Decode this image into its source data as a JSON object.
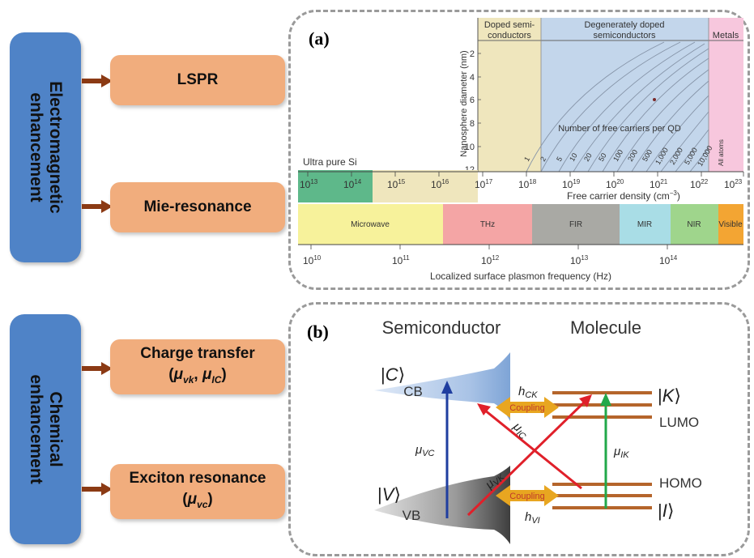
{
  "categories": [
    {
      "label_line1": "Electromagnetic",
      "label_line2": "enhancement"
    },
    {
      "label_line1": "Chemical",
      "label_line2": "enhancement"
    }
  ],
  "mechanisms": {
    "lspr": "LSPR",
    "mie": "Mie-resonance",
    "charge_transfer": "Charge transfer",
    "exciton": "Exciton resonance"
  },
  "panel_a": {
    "label": "(a)",
    "regions": [
      "Doped semi-",
      "conductors",
      "Degenerately doped",
      "semiconductors",
      "Metals"
    ],
    "y_axis_label": "Nanosphere diameter (nm)",
    "y_ticks": [
      "2",
      "4",
      "6",
      "8",
      "10",
      "12"
    ],
    "curve_caption": "Number of free carriers per QD",
    "curve_labels": [
      "1",
      "2",
      "5",
      "10",
      "20",
      "50",
      "100",
      "200",
      "500",
      "1,000",
      "2,000",
      "5,000",
      "10,000"
    ],
    "all_atoms": "All atoms",
    "ultra_pure": "Ultra pure Si",
    "density_ticks": [
      "10",
      "10",
      "10",
      "10",
      "10",
      "10",
      "10",
      "10",
      "10",
      "10",
      "10"
    ],
    "density_exps": [
      "13",
      "14",
      "15",
      "16",
      "17",
      "18",
      "19",
      "20",
      "21",
      "22",
      "23"
    ],
    "density_label": "Free carrier density (cm",
    "density_unit_exp": "−3",
    "density_label_end": ")",
    "bands": [
      "Microwave",
      "THz",
      "FIR",
      "MIR",
      "NIR",
      "Visible"
    ],
    "freq_ticks": [
      "10",
      "10",
      "10",
      "10",
      "10"
    ],
    "freq_exps": [
      "10",
      "11",
      "12",
      "13",
      "14"
    ],
    "freq_label": "Localized surface plasmon frequency (Hz)"
  },
  "panel_b": {
    "label": "(b)",
    "semiconductor": "Semiconductor",
    "molecule": "Molecule",
    "cb": "CB",
    "vb": "VB",
    "coupling": "Coupling",
    "lumo": "LUMO",
    "homo": "HOMO"
  },
  "colors": {
    "category_box": "#4f83c7",
    "mechanism_box": "#f1ad7d",
    "arrow": "#8b3a14",
    "transition_blue": "#1f3ea0",
    "transition_red": "#e0202a",
    "transition_green": "#22a84a",
    "coupling": "#e8a620"
  }
}
